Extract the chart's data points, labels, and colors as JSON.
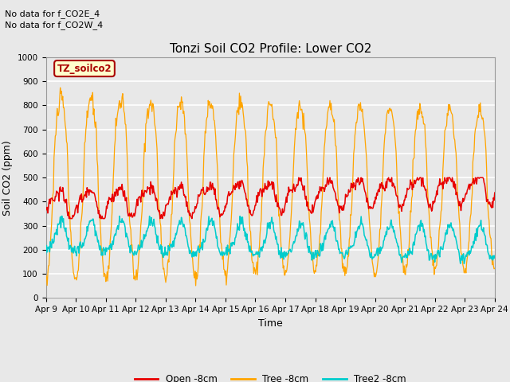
{
  "title": "Tonzi Soil CO2 Profile: Lower CO2",
  "ylabel": "Soil CO2 (ppm)",
  "xlabel": "Time",
  "annotation_line1": "No data for f_CO2E_4",
  "annotation_line2": "No data for f_CO2W_4",
  "legend_label": "TZ_soilco2",
  "ylim": [
    0,
    1000
  ],
  "series_labels": [
    "Open -8cm",
    "Tree -8cm",
    "Tree2 -8cm"
  ],
  "series_colors": [
    "#e80000",
    "#ffa500",
    "#00cccc"
  ],
  "xtick_labels": [
    "Apr 9",
    "Apr 10",
    "Apr 11",
    "Apr 12",
    "Apr 13",
    "Apr 14",
    "Apr 15",
    "Apr 16",
    "Apr 17",
    "Apr 18",
    "Apr 19",
    "Apr 20",
    "Apr 21",
    "Apr 22",
    "Apr 23",
    "Apr 24"
  ],
  "background_color": "#e8e8e8",
  "plot_bg_color": "#e8e8e8",
  "grid_color": "#ffffff",
  "title_fontsize": 11,
  "axis_label_fontsize": 9,
  "tick_fontsize": 7.5,
  "legend_box_color": "#aa0000",
  "legend_text_color": "#aa0000",
  "legend_bg": "#ffffcc"
}
